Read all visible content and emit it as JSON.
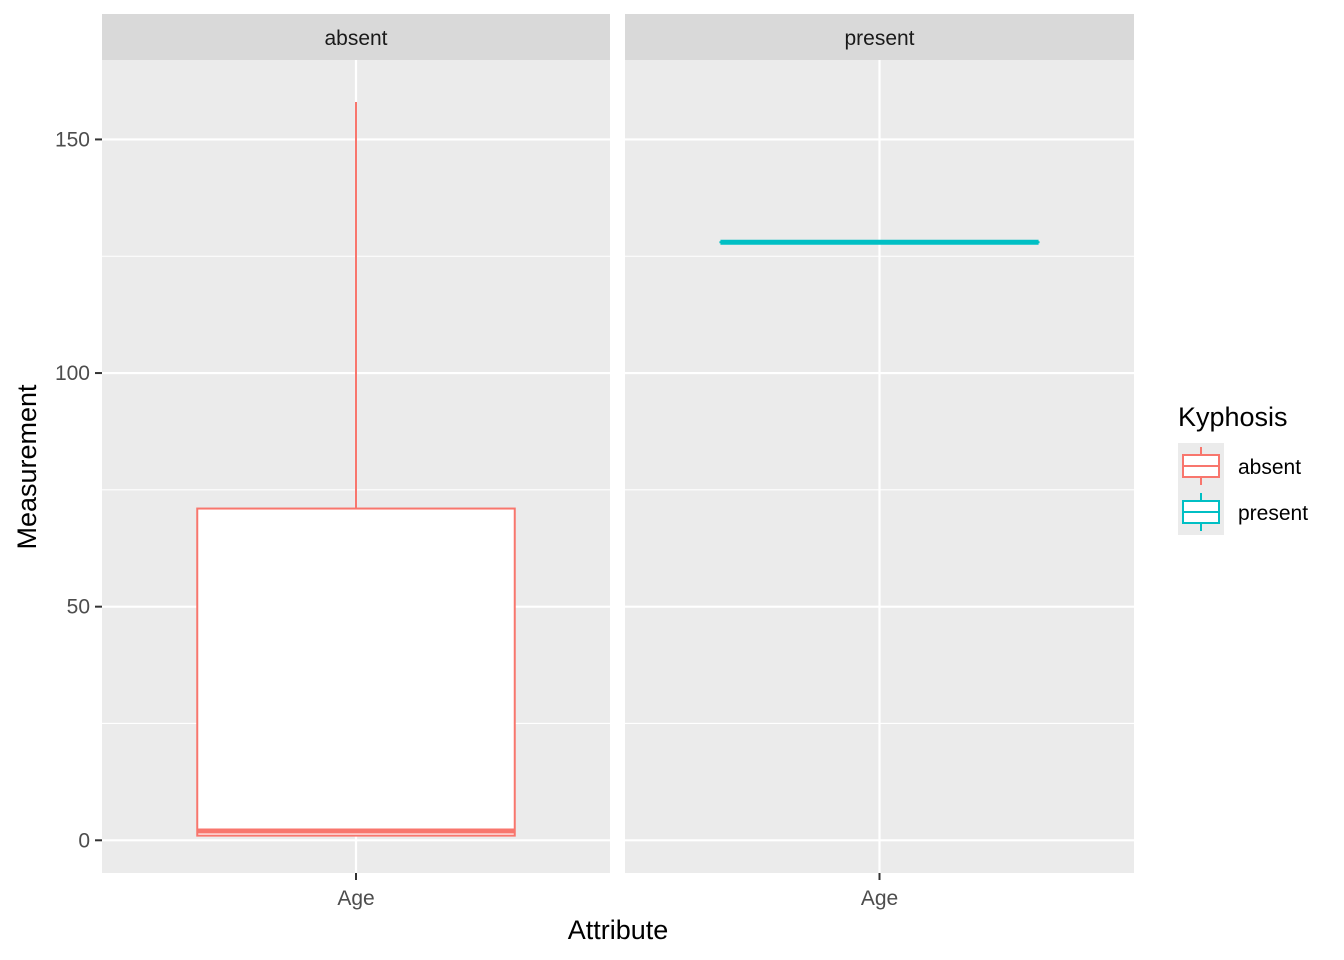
{
  "chart_data": {
    "type": "boxplot",
    "xlabel": "Attribute",
    "ylabel": "Measurement",
    "ylim": [
      -7,
      167
    ],
    "y_ticks": [
      0,
      50,
      100,
      150
    ],
    "grid": true,
    "facets": [
      {
        "label": "absent",
        "categories": [
          "Age"
        ],
        "boxes": [
          {
            "category": "Age",
            "group": "absent",
            "min": 1,
            "q1": 1,
            "median": 2,
            "q3": 71,
            "max": 158
          }
        ]
      },
      {
        "label": "present",
        "categories": [
          "Age"
        ],
        "boxes": [
          {
            "category": "Age",
            "group": "present",
            "min": 128,
            "q1": 128,
            "median": 128,
            "q3": 128,
            "max": 128
          }
        ]
      }
    ],
    "legend": {
      "title": "Kyphosis",
      "position": "right",
      "entries": [
        {
          "label": "absent",
          "color": "#F8766D"
        },
        {
          "label": "present",
          "color": "#00BFC4"
        }
      ]
    }
  },
  "colors": {
    "panel_bg": "#EBEBEB",
    "strip_bg": "#D9D9D9",
    "grid_major": "#FFFFFF",
    "absent": "#F8766D",
    "present": "#00BFC4"
  }
}
